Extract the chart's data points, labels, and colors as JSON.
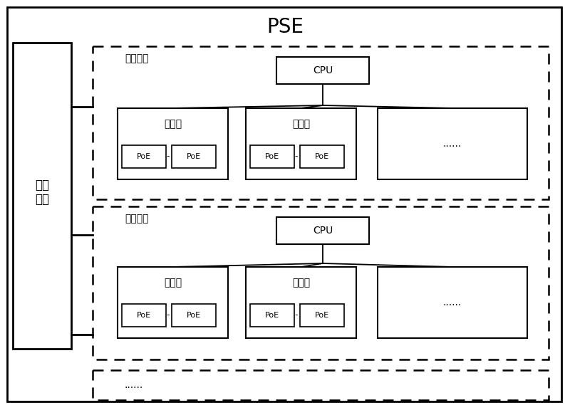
{
  "title": "PSE",
  "title_fontsize": 20,
  "label_power_module": "电源\n模块",
  "label_supply_module": "供电模块",
  "label_cpu": "CPU",
  "label_subsys": "子系统",
  "label_poe": "PoE",
  "label_ellipsis": "......",
  "bg_color": "#ffffff",
  "font_size_label": 11,
  "font_size_small": 9,
  "font_size_poe": 8
}
